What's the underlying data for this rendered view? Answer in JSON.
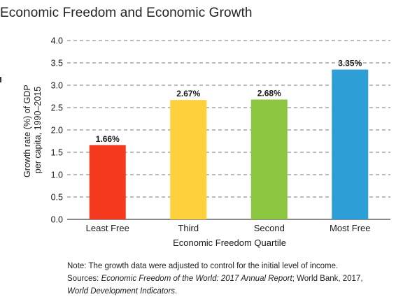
{
  "chart_data": {
    "type": "bar",
    "title": "Economic Freedom and Economic Growth",
    "xlabel": "Economic Freedom Quartile",
    "ylabel_line1": "Growth rate (%) of GDP",
    "ylabel_line2": "per capita, 1990–2015",
    "categories": [
      "Least Free",
      "Third",
      "Second",
      "Most Free"
    ],
    "values": [
      1.66,
      2.67,
      2.68,
      3.35
    ],
    "value_labels": [
      "1.66%",
      "2.67%",
      "2.68%",
      "3.35%"
    ],
    "colors": [
      "#f4391f",
      "#fdd13b",
      "#8cc641",
      "#2e9ed6"
    ],
    "ylim": [
      0,
      4.0
    ],
    "yticks": [
      "0.0",
      "0.5",
      "1.0",
      "1.5",
      "2.0",
      "2.5",
      "3.0",
      "3.5",
      "4.0"
    ],
    "grid": "dashed horizontal"
  },
  "note": {
    "line1": "Note: The growth data were adjusted to control for the initial level of income.",
    "sources_prefix": "Sources: ",
    "sources_italic1": "Economic Freedom of the World: 2017 Annual Report",
    "sources_mid": "; World Bank, 2017,",
    "sources_italic2": "World Development Indicators",
    "sources_suffix": "."
  }
}
